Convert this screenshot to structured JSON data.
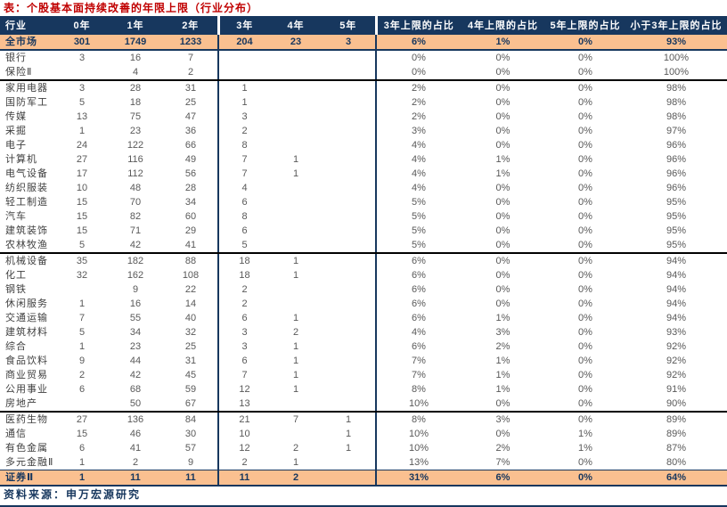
{
  "title": "表：个股基本面持续改善的年限上限（行业分布）",
  "footer": {
    "source": "资料来源：申万宏源研究"
  },
  "colors": {
    "title_text": "#C00000",
    "header_bg": "#17375E",
    "header_text": "#FFFFFF",
    "highlight_bg": "#FAC090",
    "highlight_text": "#17375E",
    "body_text": "#595959",
    "rule": "#17375E"
  },
  "table": {
    "columns": [
      "行业",
      "0年",
      "1年",
      "2年",
      "3年",
      "4年",
      "5年",
      "3年上限的占比",
      "4年上限的占比",
      "5年上限的占比",
      "小于3年上限的占比"
    ],
    "rows": [
      {
        "cells": [
          "全市场",
          "301",
          "1749",
          "1233",
          "204",
          "23",
          "3",
          "6%",
          "1%",
          "0%",
          "93%"
        ],
        "highlight": true,
        "group_end": false
      },
      {
        "cells": [
          "银行",
          "3",
          "16",
          "7",
          "",
          "",
          "",
          "0%",
          "0%",
          "0%",
          "100%"
        ],
        "highlight": false,
        "group_end": false
      },
      {
        "cells": [
          "保险Ⅱ",
          "",
          "4",
          "2",
          "",
          "",
          "",
          "0%",
          "0%",
          "0%",
          "100%"
        ],
        "highlight": false,
        "group_end": true
      },
      {
        "cells": [
          "家用电器",
          "3",
          "28",
          "31",
          "1",
          "",
          "",
          "2%",
          "0%",
          "0%",
          "98%"
        ],
        "highlight": false,
        "group_end": false
      },
      {
        "cells": [
          "国防军工",
          "5",
          "18",
          "25",
          "1",
          "",
          "",
          "2%",
          "0%",
          "0%",
          "98%"
        ],
        "highlight": false,
        "group_end": false
      },
      {
        "cells": [
          "传媒",
          "13",
          "75",
          "47",
          "3",
          "",
          "",
          "2%",
          "0%",
          "0%",
          "98%"
        ],
        "highlight": false,
        "group_end": false
      },
      {
        "cells": [
          "采掘",
          "1",
          "23",
          "36",
          "2",
          "",
          "",
          "3%",
          "0%",
          "0%",
          "97%"
        ],
        "highlight": false,
        "group_end": false
      },
      {
        "cells": [
          "电子",
          "24",
          "122",
          "66",
          "8",
          "",
          "",
          "4%",
          "0%",
          "0%",
          "96%"
        ],
        "highlight": false,
        "group_end": false
      },
      {
        "cells": [
          "计算机",
          "27",
          "116",
          "49",
          "7",
          "1",
          "",
          "4%",
          "1%",
          "0%",
          "96%"
        ],
        "highlight": false,
        "group_end": false
      },
      {
        "cells": [
          "电气设备",
          "17",
          "112",
          "56",
          "7",
          "1",
          "",
          "4%",
          "1%",
          "0%",
          "96%"
        ],
        "highlight": false,
        "group_end": false
      },
      {
        "cells": [
          "纺织服装",
          "10",
          "48",
          "28",
          "4",
          "",
          "",
          "4%",
          "0%",
          "0%",
          "96%"
        ],
        "highlight": false,
        "group_end": false
      },
      {
        "cells": [
          "轻工制造",
          "15",
          "70",
          "34",
          "6",
          "",
          "",
          "5%",
          "0%",
          "0%",
          "95%"
        ],
        "highlight": false,
        "group_end": false
      },
      {
        "cells": [
          "汽车",
          "15",
          "82",
          "60",
          "8",
          "",
          "",
          "5%",
          "0%",
          "0%",
          "95%"
        ],
        "highlight": false,
        "group_end": false
      },
      {
        "cells": [
          "建筑装饰",
          "15",
          "71",
          "29",
          "6",
          "",
          "",
          "5%",
          "0%",
          "0%",
          "95%"
        ],
        "highlight": false,
        "group_end": false
      },
      {
        "cells": [
          "农林牧渔",
          "5",
          "42",
          "41",
          "5",
          "",
          "",
          "5%",
          "0%",
          "0%",
          "95%"
        ],
        "highlight": false,
        "group_end": true
      },
      {
        "cells": [
          "机械设备",
          "35",
          "182",
          "88",
          "18",
          "1",
          "",
          "6%",
          "0%",
          "0%",
          "94%"
        ],
        "highlight": false,
        "group_end": false
      },
      {
        "cells": [
          "化工",
          "32",
          "162",
          "108",
          "18",
          "1",
          "",
          "6%",
          "0%",
          "0%",
          "94%"
        ],
        "highlight": false,
        "group_end": false
      },
      {
        "cells": [
          "钢铁",
          "",
          "9",
          "22",
          "2",
          "",
          "",
          "6%",
          "0%",
          "0%",
          "94%"
        ],
        "highlight": false,
        "group_end": false
      },
      {
        "cells": [
          "休闲服务",
          "1",
          "16",
          "14",
          "2",
          "",
          "",
          "6%",
          "0%",
          "0%",
          "94%"
        ],
        "highlight": false,
        "group_end": false
      },
      {
        "cells": [
          "交通运输",
          "7",
          "55",
          "40",
          "6",
          "1",
          "",
          "6%",
          "1%",
          "0%",
          "94%"
        ],
        "highlight": false,
        "group_end": false
      },
      {
        "cells": [
          "建筑材料",
          "5",
          "34",
          "32",
          "3",
          "2",
          "",
          "4%",
          "3%",
          "0%",
          "93%"
        ],
        "highlight": false,
        "group_end": false
      },
      {
        "cells": [
          "综合",
          "1",
          "23",
          "25",
          "3",
          "1",
          "",
          "6%",
          "2%",
          "0%",
          "92%"
        ],
        "highlight": false,
        "group_end": false
      },
      {
        "cells": [
          "食品饮料",
          "9",
          "44",
          "31",
          "6",
          "1",
          "",
          "7%",
          "1%",
          "0%",
          "92%"
        ],
        "highlight": false,
        "group_end": false
      },
      {
        "cells": [
          "商业贸易",
          "2",
          "42",
          "45",
          "7",
          "1",
          "",
          "7%",
          "1%",
          "0%",
          "92%"
        ],
        "highlight": false,
        "group_end": false
      },
      {
        "cells": [
          "公用事业",
          "6",
          "68",
          "59",
          "12",
          "1",
          "",
          "8%",
          "1%",
          "0%",
          "91%"
        ],
        "highlight": false,
        "group_end": false
      },
      {
        "cells": [
          "房地产",
          "",
          "50",
          "67",
          "13",
          "",
          "",
          "10%",
          "0%",
          "0%",
          "90%"
        ],
        "highlight": false,
        "group_end": true
      },
      {
        "cells": [
          "医药生物",
          "27",
          "136",
          "84",
          "21",
          "7",
          "1",
          "8%",
          "3%",
          "0%",
          "89%"
        ],
        "highlight": false,
        "group_end": false
      },
      {
        "cells": [
          "通信",
          "15",
          "46",
          "30",
          "10",
          "",
          "1",
          "10%",
          "0%",
          "1%",
          "89%"
        ],
        "highlight": false,
        "group_end": false
      },
      {
        "cells": [
          "有色金属",
          "6",
          "41",
          "57",
          "12",
          "2",
          "1",
          "10%",
          "2%",
          "1%",
          "87%"
        ],
        "highlight": false,
        "group_end": false
      },
      {
        "cells": [
          "多元金融Ⅱ",
          "1",
          "2",
          "9",
          "2",
          "1",
          "",
          "13%",
          "7%",
          "0%",
          "80%"
        ],
        "highlight": false,
        "group_end": false
      },
      {
        "cells": [
          "证券Ⅱ",
          "1",
          "11",
          "11",
          "11",
          "2",
          "",
          "31%",
          "6%",
          "0%",
          "64%"
        ],
        "highlight": true,
        "group_end": false
      }
    ]
  }
}
